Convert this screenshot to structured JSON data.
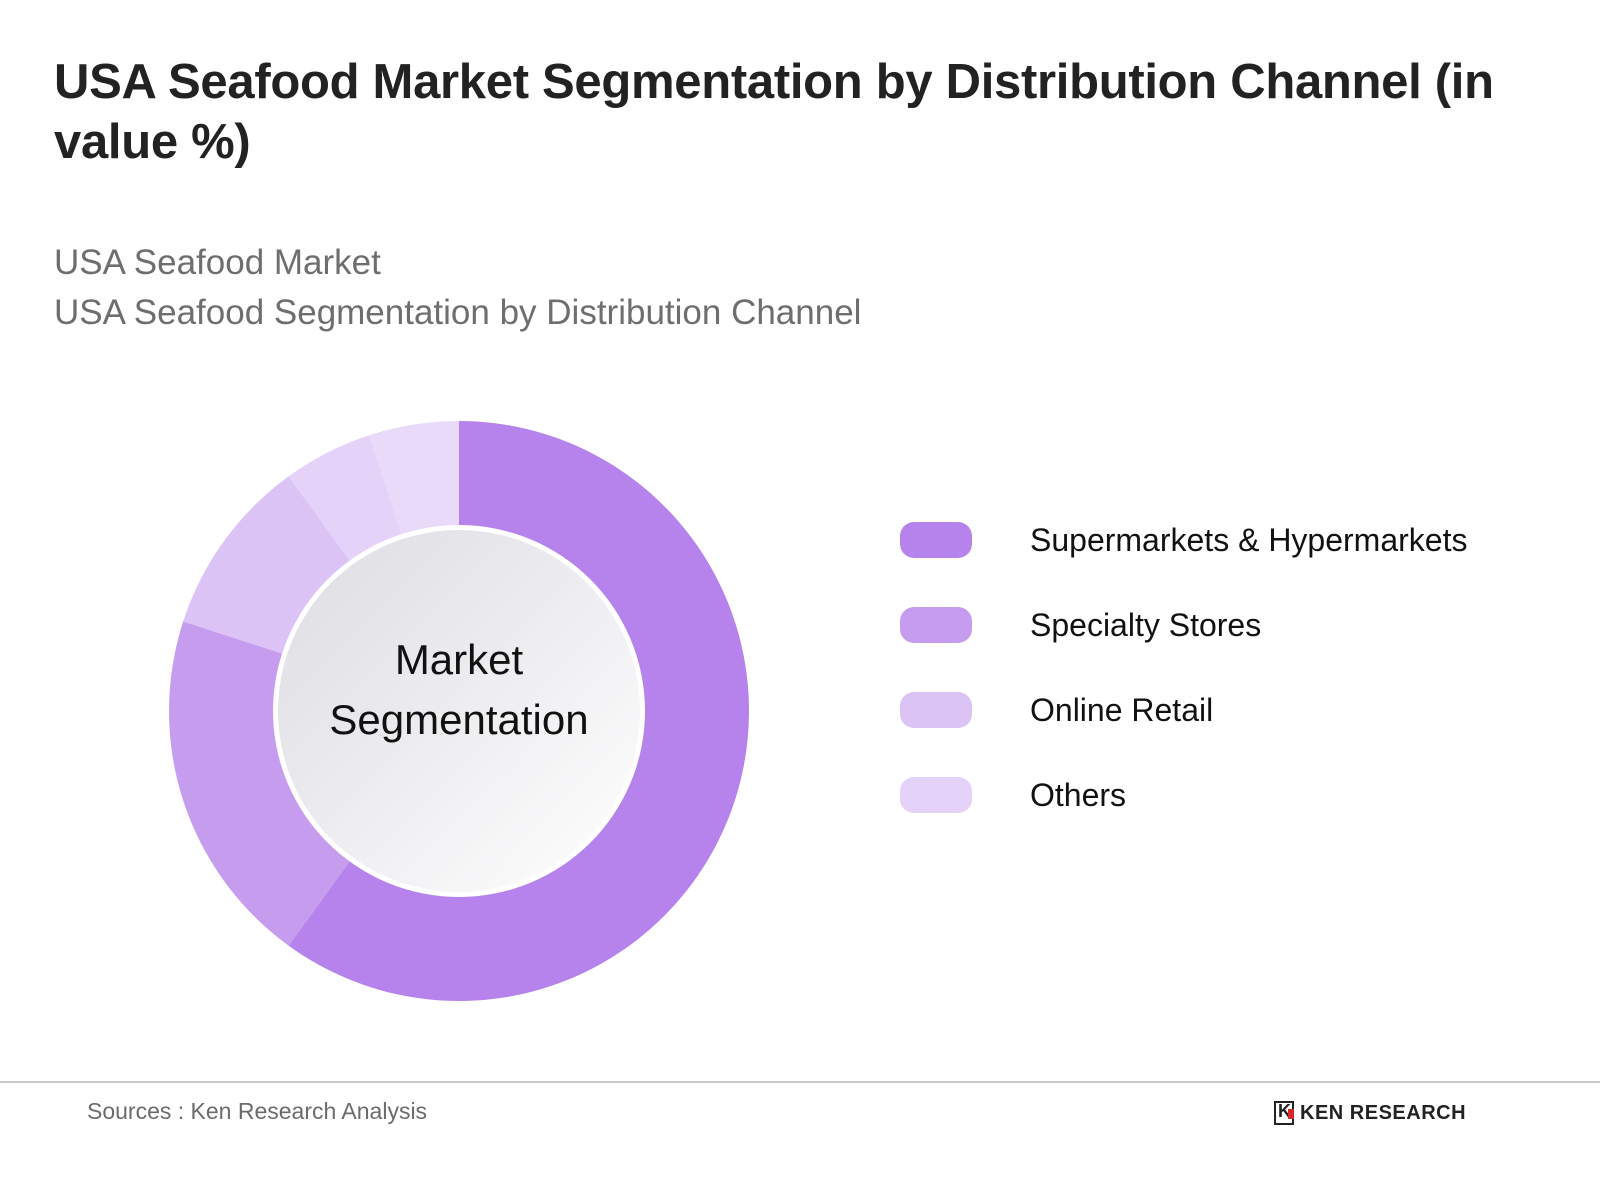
{
  "header": {
    "title": "USA Seafood Market Segmentation by Distribution Channel (in value %)",
    "subtitle_line1": "USA Seafood Market",
    "subtitle_line2": "USA Seafood Segmentation by Distribution Channel"
  },
  "center_label": {
    "line1": "Market",
    "line2": "Segmentation"
  },
  "legend": [
    {
      "label": "Supermarkets & Hypermarkets",
      "color": "#b583eb"
    },
    {
      "label": "Specialty Stores",
      "color": "#c69dee"
    },
    {
      "label": "Online Retail",
      "color": "#dcc3f6"
    },
    {
      "label": "Others",
      "color": "#e4d2f8"
    }
  ],
  "footer": {
    "source": "Sources : Ken Research Analysis",
    "brand": "KEN RESEARCH"
  },
  "chart_data": {
    "type": "pie",
    "subtype": "donut",
    "title": "USA Seafood Market Segmentation by Distribution Channel (in value %)",
    "subtitle": "USA Seafood Market / USA Seafood Segmentation by Distribution Channel",
    "center_text": "Market Segmentation",
    "categories": [
      "Supermarkets & Hypermarkets",
      "Specialty Stores",
      "Online Retail",
      "Others"
    ],
    "values": [
      60,
      20,
      10,
      10
    ],
    "slices_drawn": [
      {
        "category": "Supermarkets & Hypermarkets",
        "value": 60,
        "color": "#b583eb"
      },
      {
        "category": "Specialty Stores",
        "value": 20,
        "color": "#c69dee"
      },
      {
        "category": "Online Retail",
        "value": 10,
        "color": "#dcc3f6"
      },
      {
        "category": "Others",
        "value": 5,
        "color": "#e4d2f8"
      },
      {
        "category": "Others",
        "value": 5,
        "color": "#e9dafa"
      }
    ],
    "legend_position": "right",
    "source": "Sources : Ken Research Analysis"
  }
}
